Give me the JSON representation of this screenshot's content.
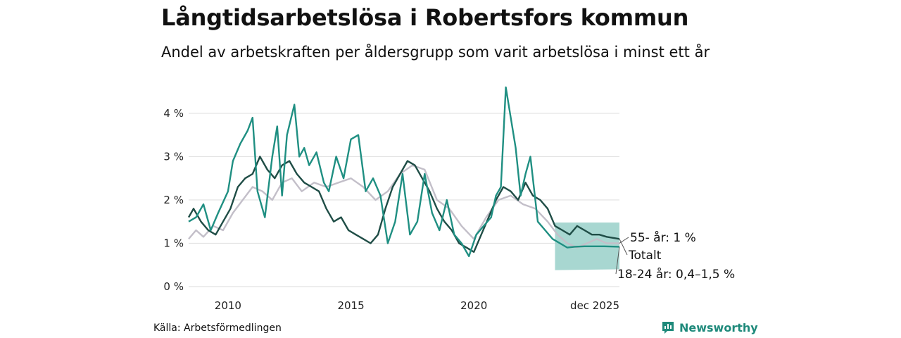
{
  "chart_data": {
    "type": "line",
    "title": "Långtidsarbetslösa i Robertsfors kommun",
    "subtitle": "Andel av arbetskraften per åldersgrupp som varit arbetslösa i minst ett år",
    "xlabel": "",
    "ylabel": "",
    "xlim": [
      2008.4,
      2025.92
    ],
    "ylim": [
      0,
      4.6
    ],
    "y_ticks": [
      0,
      1,
      2,
      3,
      4
    ],
    "y_tick_labels": [
      "0 %",
      "1 %",
      "2 %",
      "3 %",
      "4 %"
    ],
    "x_ticks": [
      2010,
      2015,
      2020,
      2025.92
    ],
    "x_tick_labels": [
      "2010",
      "2015",
      "2020",
      "dec 2025"
    ],
    "grid": true,
    "colors": {
      "totalt": "#1f4d46",
      "age_18_24": "#1f8f82",
      "age_55": "#c3bfc9",
      "band": "#9fd3cc",
      "connector": "#555555"
    },
    "series": [
      {
        "name": "55- år",
        "color": "#c3bfc9",
        "x": [
          2008.4,
          2008.7,
          2009.0,
          2009.4,
          2009.8,
          2010.2,
          2010.6,
          2011.0,
          2011.4,
          2011.8,
          2012.2,
          2012.6,
          2013.0,
          2013.5,
          2014.0,
          2014.5,
          2015.0,
          2015.5,
          2016.0,
          2016.5,
          2017.0,
          2017.5,
          2018.0,
          2018.5,
          2019.0,
          2019.5,
          2020.0,
          2020.5,
          2021.0,
          2021.5,
          2022.0,
          2022.5,
          2023.0,
          2023.4,
          2023.8,
          2024.2,
          2024.6,
          2025.0,
          2025.4,
          2025.92
        ],
        "values": [
          1.1,
          1.3,
          1.15,
          1.4,
          1.3,
          1.7,
          2.0,
          2.3,
          2.2,
          2.0,
          2.4,
          2.5,
          2.2,
          2.4,
          2.3,
          2.4,
          2.5,
          2.3,
          2.0,
          2.2,
          2.6,
          2.8,
          2.7,
          2.0,
          1.8,
          1.4,
          1.1,
          1.6,
          2.0,
          2.1,
          1.9,
          1.8,
          1.5,
          1.2,
          1.0,
          0.9,
          1.0,
          1.1,
          1.0,
          1.0
        ]
      },
      {
        "name": "Totalt",
        "color": "#1f4d46",
        "x": [
          2008.4,
          2008.6,
          2008.9,
          2009.2,
          2009.5,
          2009.8,
          2010.1,
          2010.4,
          2010.7,
          2011.0,
          2011.3,
          2011.6,
          2011.9,
          2012.2,
          2012.5,
          2012.8,
          2013.1,
          2013.4,
          2013.7,
          2014.0,
          2014.3,
          2014.6,
          2014.9,
          2015.2,
          2015.5,
          2015.8,
          2016.1,
          2016.4,
          2016.7,
          2017.0,
          2017.3,
          2017.6,
          2017.9,
          2018.2,
          2018.5,
          2018.8,
          2019.1,
          2019.4,
          2019.7,
          2020.0,
          2020.3,
          2020.6,
          2020.9,
          2021.2,
          2021.5,
          2021.8,
          2022.1,
          2022.4,
          2022.7,
          2023.0,
          2023.3,
          2023.6,
          2023.9,
          2024.2,
          2024.5,
          2024.8,
          2025.1,
          2025.4,
          2025.92
        ],
        "values": [
          1.6,
          1.8,
          1.5,
          1.3,
          1.2,
          1.5,
          1.8,
          2.3,
          2.5,
          2.6,
          3.0,
          2.7,
          2.5,
          2.8,
          2.9,
          2.6,
          2.4,
          2.3,
          2.2,
          1.8,
          1.5,
          1.6,
          1.3,
          1.2,
          1.1,
          1.0,
          1.2,
          1.8,
          2.3,
          2.6,
          2.9,
          2.8,
          2.5,
          2.2,
          1.8,
          1.5,
          1.3,
          1.0,
          0.9,
          0.8,
          1.2,
          1.6,
          2.0,
          2.3,
          2.2,
          2.0,
          2.4,
          2.1,
          2.0,
          1.8,
          1.4,
          1.3,
          1.2,
          1.4,
          1.3,
          1.2,
          1.2,
          1.15,
          1.1
        ]
      },
      {
        "name": "18-24 år",
        "color": "#1f8f82",
        "x": [
          2008.4,
          2008.7,
          2009.0,
          2009.3,
          2009.6,
          2010.0,
          2010.2,
          2010.5,
          2010.8,
          2011.0,
          2011.2,
          2011.5,
          2011.8,
          2012.0,
          2012.2,
          2012.4,
          2012.7,
          2012.9,
          2013.1,
          2013.3,
          2013.6,
          2013.9,
          2014.1,
          2014.4,
          2014.7,
          2015.0,
          2015.3,
          2015.6,
          2015.9,
          2016.2,
          2016.5,
          2016.8,
          2017.1,
          2017.4,
          2017.7,
          2018.0,
          2018.3,
          2018.6,
          2018.9,
          2019.2,
          2019.5,
          2019.8,
          2020.1,
          2020.4,
          2020.7,
          2020.9,
          2021.1,
          2021.3,
          2021.5,
          2021.7,
          2021.9,
          2022.1,
          2022.3,
          2022.6,
          2022.9,
          2023.2,
          2023.5,
          2023.8,
          2024.1,
          2024.5,
          2024.9,
          2025.3,
          2025.92
        ],
        "values": [
          1.5,
          1.6,
          1.9,
          1.3,
          1.7,
          2.2,
          2.9,
          3.3,
          3.6,
          3.9,
          2.2,
          1.6,
          3.0,
          3.7,
          2.1,
          3.5,
          4.2,
          3.0,
          3.2,
          2.8,
          3.1,
          2.4,
          2.2,
          3.0,
          2.5,
          3.4,
          3.5,
          2.2,
          2.5,
          2.1,
          1.0,
          1.5,
          2.6,
          1.2,
          1.5,
          2.6,
          1.7,
          1.3,
          2.0,
          1.2,
          1.0,
          0.7,
          1.2,
          1.4,
          1.6,
          2.1,
          2.3,
          4.6,
          3.9,
          3.2,
          2.1,
          2.6,
          3.0,
          1.5,
          1.3,
          1.1,
          1.0,
          0.9,
          0.92,
          0.93,
          0.93,
          0.93,
          0.92
        ]
      }
    ],
    "band": {
      "series": "18-24 år",
      "x": [
        2023.3,
        2025.92
      ],
      "low": [
        0.38,
        0.4
      ],
      "high": [
        1.48,
        1.48
      ]
    },
    "end_labels": [
      {
        "series": "55- år",
        "text": "55- år:  1 %",
        "value": 1.0
      },
      {
        "series": "Totalt",
        "text": "Totalt",
        "value": 1.1
      },
      {
        "series": "18-24 år",
        "text": "18-24 år: 0,4–1,5 %",
        "value": 0.92
      }
    ]
  },
  "source": "Källa: Arbetsförmedlingen",
  "brand": "Newsworthy"
}
